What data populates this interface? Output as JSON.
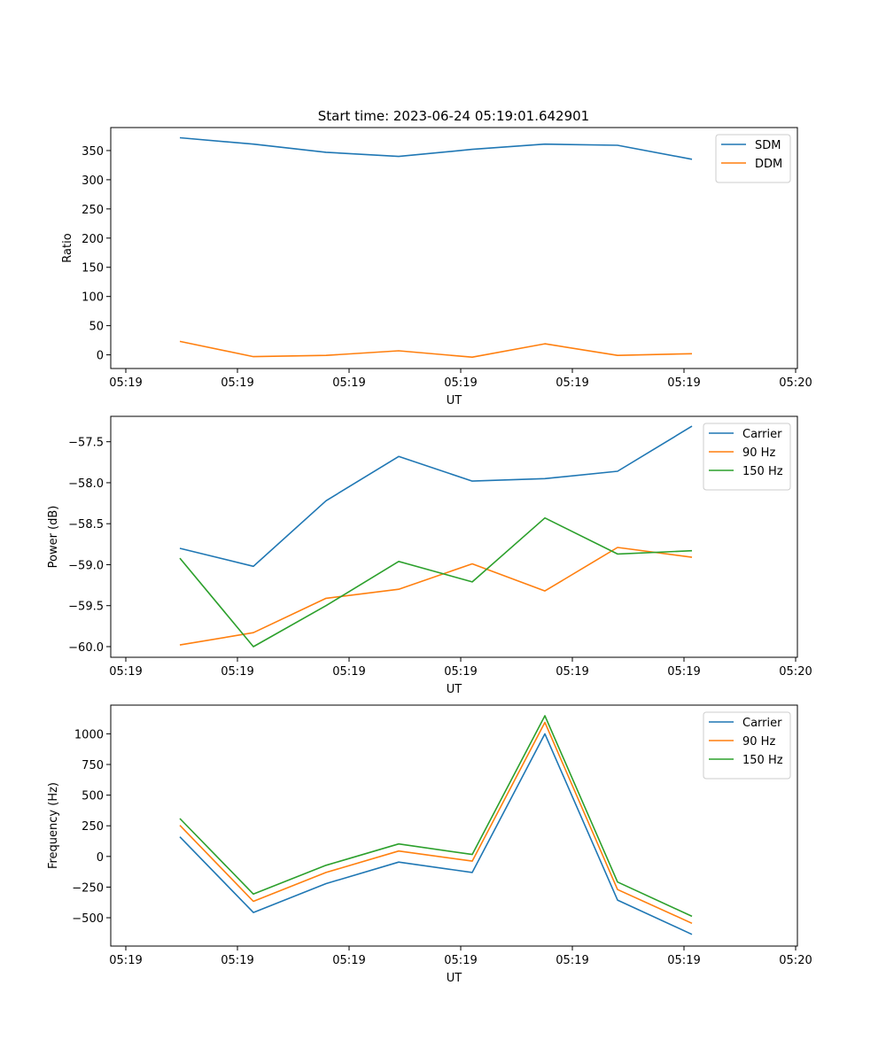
{
  "title": "Start time: 2023-06-24 05:19:01.642901",
  "chart_data": [
    {
      "type": "line",
      "xlabel": "UT",
      "ylabel": "Ratio",
      "x_ticks": [
        "05:19",
        "05:19",
        "05:19",
        "05:19",
        "05:19",
        "05:19",
        "05:20"
      ],
      "ylim": [
        -23.4,
        389.4
      ],
      "y_ticks": [
        0,
        50,
        100,
        150,
        200,
        250,
        300,
        350
      ],
      "legend": "upper right",
      "series": [
        {
          "name": "SDM",
          "color": "#1f77b4",
          "values": [
            372,
            361,
            347,
            340,
            352,
            361,
            359,
            335
          ]
        },
        {
          "name": "DDM",
          "color": "#ff7f0e",
          "values": [
            23,
            -3,
            -1,
            7,
            -4,
            19,
            -1,
            2
          ]
        }
      ]
    },
    {
      "type": "line",
      "xlabel": "UT",
      "ylabel": "Power (dB)",
      "x_ticks": [
        "05:19",
        "05:19",
        "05:19",
        "05:19",
        "05:19",
        "05:19",
        "05:20"
      ],
      "ylim": [
        -60.13,
        -57.19
      ],
      "y_ticks": [
        -60.0,
        -59.5,
        -59.0,
        -58.5,
        -58.0,
        -57.5
      ],
      "y_tick_labels": [
        "−60.0",
        "−59.5",
        "−59.0",
        "−58.5",
        "−58.0",
        "−57.5"
      ],
      "legend": "upper right",
      "series": [
        {
          "name": "Carrier",
          "color": "#1f77b4",
          "values": [
            -58.8,
            -59.02,
            -58.22,
            -57.68,
            -57.98,
            -57.95,
            -57.86,
            -57.31
          ]
        },
        {
          "name": "90 Hz",
          "color": "#ff7f0e",
          "values": [
            -59.98,
            -59.83,
            -59.41,
            -59.3,
            -58.99,
            -59.32,
            -58.79,
            -58.91
          ]
        },
        {
          "name": "150 Hz",
          "color": "#2ca02c",
          "values": [
            -58.92,
            -60.0,
            -59.5,
            -58.96,
            -59.21,
            -58.43,
            -58.87,
            -58.83
          ]
        }
      ]
    },
    {
      "type": "line",
      "xlabel": "UT",
      "ylabel": "Frequency (Hz)",
      "x_ticks": [
        "05:19",
        "05:19",
        "05:19",
        "05:19",
        "05:19",
        "05:19",
        "05:20"
      ],
      "ylim": [
        -731,
        1234
      ],
      "y_ticks": [
        -500,
        -250,
        0,
        250,
        500,
        750,
        1000
      ],
      "y_tick_labels": [
        "−500",
        "−250",
        "0",
        "250",
        "500",
        "750",
        "1000"
      ],
      "legend": "upper right",
      "series": [
        {
          "name": "Carrier",
          "color": "#1f77b4",
          "values": [
            160,
            -457,
            -222,
            -46,
            -131,
            1000,
            -356,
            -636
          ]
        },
        {
          "name": "90 Hz",
          "color": "#ff7f0e",
          "values": [
            254,
            -366,
            -131,
            44,
            -38,
            1093,
            -270,
            -545
          ]
        },
        {
          "name": "150 Hz",
          "color": "#2ca02c",
          "values": [
            309,
            -307,
            -72,
            102,
            16,
            1147,
            -209,
            -488
          ]
        }
      ]
    }
  ]
}
